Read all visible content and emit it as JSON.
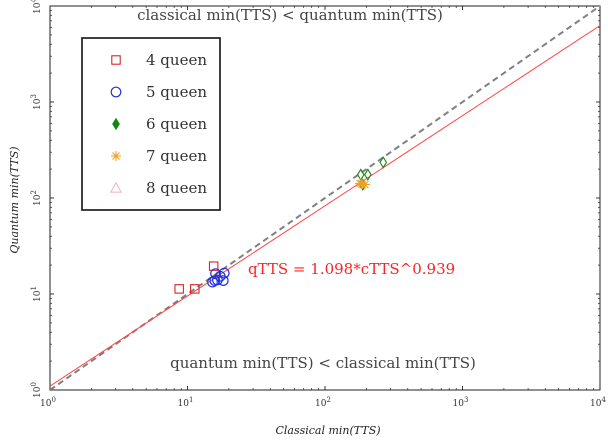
{
  "chart_data": {
    "type": "scatter",
    "xlabel": "Classical min(TTS)",
    "ylabel": "Quantum min(TTS)",
    "xscale": "log",
    "yscale": "log",
    "xlim": [
      1,
      10000
    ],
    "ylim": [
      1,
      10000
    ],
    "x_ticks": [
      {
        "base": "10",
        "exp": "0"
      },
      {
        "base": "10",
        "exp": "1"
      },
      {
        "base": "10",
        "exp": "2"
      },
      {
        "base": "10",
        "exp": "3"
      },
      {
        "base": "10",
        "exp": "4"
      }
    ],
    "y_ticks": [
      {
        "base": "10",
        "exp": "0"
      },
      {
        "base": "10",
        "exp": "1"
      },
      {
        "base": "10",
        "exp": "2"
      },
      {
        "base": "10",
        "exp": "3"
      },
      {
        "base": "10",
        "exp": "4"
      }
    ],
    "legend_position": "top-left",
    "annotations": {
      "top": "classical min(TTS) < quantum min(TTS)",
      "bottom": "quantum min(TTS) < classical min(TTS)",
      "fit": "qTTS = 1.098*cTTS^0.939"
    },
    "fit_line": {
      "a": 1.098,
      "b": 0.939,
      "color": "#ff4444"
    },
    "parity_line": {
      "color": "#808080",
      "style": "dashed"
    },
    "series": [
      {
        "name": "4 queen",
        "marker": "square",
        "color": "#dd2222",
        "points": [
          [
            8.7,
            11.3
          ],
          [
            11.3,
            11.3
          ],
          [
            15.5,
            19.5
          ]
        ]
      },
      {
        "name": "5 queen",
        "marker": "circle",
        "color": "#2233dd",
        "points": [
          [
            15.2,
            13.3
          ],
          [
            15.8,
            13.8
          ],
          [
            16.5,
            14.0
          ],
          [
            17.3,
            15.3
          ],
          [
            18.2,
            13.8
          ],
          [
            16.0,
            16.3
          ],
          [
            18.5,
            16.5
          ]
        ]
      },
      {
        "name": "6 queen",
        "marker": "diamond",
        "color": "#118811",
        "points": [
          [
            182,
            175
          ],
          [
            205,
            175
          ],
          [
            188,
            138
          ],
          [
            265,
            235
          ]
        ]
      },
      {
        "name": "7 queen",
        "marker": "star",
        "color": "#f0a020",
        "points": [
          [
            185,
            140
          ],
          [
            195,
            138
          ],
          [
            180,
            142
          ]
        ]
      },
      {
        "name": "8 queen",
        "marker": "triangle",
        "color": "#f4b8c8",
        "points": []
      }
    ]
  }
}
